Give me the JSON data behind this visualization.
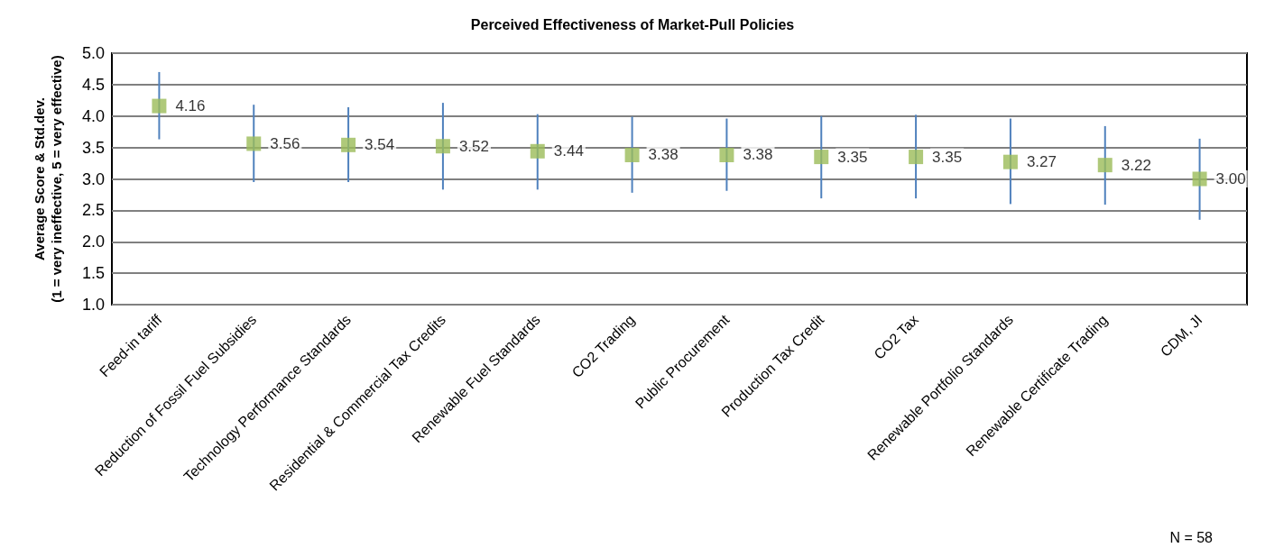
{
  "chart_data": {
    "type": "scatter",
    "title": "Perceived Effectiveness of Market-Pull Policies",
    "ylabel": "Average Score & Std.dev.\n(1 = very ineffective, 5 = very effective)",
    "categories": [
      "Feed-in tariff",
      "Reduction of Fossil Fuel Subsidies",
      "Technology Performance Standards",
      "Residential & Commercial Tax Credits",
      "Renewable Fuel Standards",
      "CO2 Trading",
      "Public Procurement",
      "Production Tax Credit",
      "CO2 Tax",
      "Renewable Portfolio Standards",
      "Renewable Certificate Trading",
      "CDM, JI"
    ],
    "series": [
      {
        "color": "#9bbb59",
        "values": [
          4.16,
          3.56,
          3.54,
          3.52,
          3.44,
          3.38,
          3.38,
          3.35,
          3.35,
          3.27,
          3.22,
          3.0
        ],
        "value_labels": [
          "4.16",
          "3.56",
          "3.54",
          "3.52",
          "3.44",
          "3.38",
          "3.38",
          "3.35",
          "3.35",
          "3.27",
          "3.22",
          "3.00"
        ],
        "errors": [
          [
            3.63,
            4.7
          ],
          [
            2.95,
            4.18
          ],
          [
            2.95,
            4.14
          ],
          [
            2.83,
            4.21
          ],
          [
            2.83,
            4.03
          ],
          [
            2.78,
            3.99
          ],
          [
            2.81,
            3.96
          ],
          [
            2.69,
            4.0
          ],
          [
            2.69,
            4.02
          ],
          [
            2.6,
            3.96
          ],
          [
            2.59,
            3.84
          ],
          [
            2.35,
            3.64
          ]
        ]
      }
    ],
    "ylim": [
      1,
      5
    ],
    "yticks": [
      {
        "value": 1,
        "label": "1.0"
      },
      {
        "value": 1.5,
        "label": "1.5"
      },
      {
        "value": 2,
        "label": "2.0"
      },
      {
        "value": 2.5,
        "label": "2.5"
      },
      {
        "value": 3,
        "label": "3.0"
      },
      {
        "value": 3.5,
        "label": "3.5"
      },
      {
        "value": 4,
        "label": "4.0"
      },
      {
        "value": 4.5,
        "label": "4.5"
      },
      {
        "value": 5,
        "label": "5.0"
      }
    ],
    "grid": "y",
    "marker": "square",
    "annotations": [
      "N = 58"
    ]
  }
}
